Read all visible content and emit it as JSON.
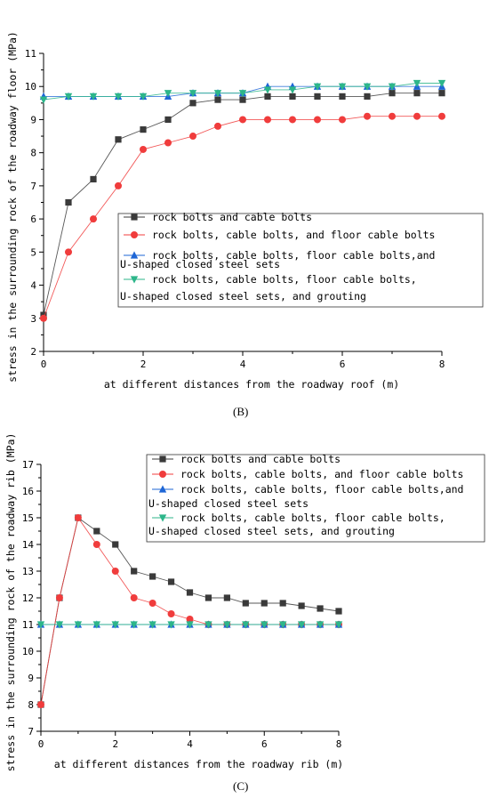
{
  "panels": [
    {
      "label": "(B)"
    },
    {
      "label": "(C)"
    }
  ],
  "chart_data": [
    {
      "type": "line",
      "xlabel": "at different distances from the roadway roof (m)",
      "ylabel": "stress in the surrounding rock of the roadway floor (MPa)",
      "xlim": [
        0,
        8
      ],
      "ylim": [
        2,
        11
      ],
      "xticks": [
        0,
        2,
        4,
        6,
        8
      ],
      "yticks": [
        2,
        3,
        4,
        5,
        6,
        7,
        8,
        9,
        10,
        11
      ],
      "grid": false,
      "legend_position": "center-right",
      "series": [
        {
          "name": "rock bolts and cable bolts",
          "color": "#3a3a3a",
          "marker": "square",
          "x": [
            0,
            0.5,
            1,
            1.5,
            2,
            2.5,
            3,
            3.5,
            4,
            4.5,
            5,
            5.5,
            6,
            6.5,
            7,
            7.5,
            8
          ],
          "y": [
            3.1,
            6.5,
            7.2,
            8.4,
            8.7,
            9.0,
            9.5,
            9.6,
            9.6,
            9.7,
            9.7,
            9.7,
            9.7,
            9.7,
            9.8,
            9.8,
            9.8
          ]
        },
        {
          "name": "rock bolts, cable bolts, and floor cable bolts",
          "color": "#f03c3c",
          "marker": "circle",
          "x": [
            0,
            0.5,
            1,
            1.5,
            2,
            2.5,
            3,
            3.5,
            4,
            4.5,
            5,
            5.5,
            6,
            6.5,
            7,
            7.5,
            8
          ],
          "y": [
            3.0,
            5.0,
            6.0,
            7.0,
            8.1,
            8.3,
            8.5,
            8.8,
            9.0,
            9.0,
            9.0,
            9.0,
            9.0,
            9.1,
            9.1,
            9.1,
            9.1
          ]
        },
        {
          "name": "rock bolts, cable bolts, floor cable bolts,and\nU-shaped closed steel sets",
          "color": "#1e66d6",
          "marker": "triangle-up",
          "x": [
            0,
            0.5,
            1,
            1.5,
            2,
            2.5,
            3,
            3.5,
            4,
            4.5,
            5,
            5.5,
            6,
            6.5,
            7,
            7.5,
            8
          ],
          "y": [
            9.7,
            9.7,
            9.7,
            9.7,
            9.7,
            9.7,
            9.8,
            9.8,
            9.8,
            10.0,
            10.0,
            10.0,
            10.0,
            10.0,
            10.0,
            10.0,
            10.0
          ]
        },
        {
          "name": "rock bolts, cable bolts, floor cable bolts,\nU-shaped closed steel sets, and grouting",
          "color": "#2db68a",
          "marker": "triangle-down",
          "x": [
            0,
            0.5,
            1,
            1.5,
            2,
            2.5,
            3,
            3.5,
            4,
            4.5,
            5,
            5.5,
            6,
            6.5,
            7,
            7.5,
            8
          ],
          "y": [
            9.6,
            9.7,
            9.7,
            9.7,
            9.7,
            9.8,
            9.8,
            9.8,
            9.8,
            9.9,
            9.9,
            10.0,
            10.0,
            10.0,
            10.0,
            10.1,
            10.1
          ]
        }
      ]
    },
    {
      "type": "line",
      "xlabel": "at different distances from the roadway rib (m)",
      "ylabel": "stress in the surrounding rock of the roadway rib (MPa)",
      "xlim": [
        0,
        8
      ],
      "ylim": [
        7,
        17
      ],
      "xticks": [
        0,
        2,
        4,
        6,
        8
      ],
      "yticks": [
        7,
        8,
        9,
        10,
        11,
        12,
        13,
        14,
        15,
        16,
        17
      ],
      "grid": false,
      "legend_position": "top-right",
      "series": [
        {
          "name": "rock bolts and cable bolts",
          "color": "#3a3a3a",
          "marker": "square",
          "x": [
            0,
            0.5,
            1,
            1.5,
            2,
            2.5,
            3,
            3.5,
            4,
            4.5,
            5,
            5.5,
            6,
            6.5,
            7,
            7.5,
            8
          ],
          "y": [
            8.0,
            12.0,
            15.0,
            14.5,
            14.0,
            13.0,
            12.8,
            12.6,
            12.2,
            12.0,
            12.0,
            11.8,
            11.8,
            11.8,
            11.7,
            11.6,
            11.5
          ]
        },
        {
          "name": "rock bolts, cable bolts, and floor cable bolts",
          "color": "#f03c3c",
          "marker": "circle",
          "x": [
            0,
            0.5,
            1,
            1.5,
            2,
            2.5,
            3,
            3.5,
            4,
            4.5,
            5,
            5.5,
            6,
            6.5,
            7,
            7.5,
            8
          ],
          "y": [
            8.0,
            12.0,
            15.0,
            14.0,
            13.0,
            12.0,
            11.8,
            11.4,
            11.2,
            11.0,
            11.0,
            11.0,
            11.0,
            11.0,
            11.0,
            11.0,
            11.0
          ]
        },
        {
          "name": "rock bolts, cable bolts, floor cable bolts,and\nU-shaped closed steel sets",
          "color": "#1e66d6",
          "marker": "triangle-up",
          "x": [
            0,
            0.5,
            1,
            1.5,
            2,
            2.5,
            3,
            3.5,
            4,
            4.5,
            5,
            5.5,
            6,
            6.5,
            7,
            7.5,
            8
          ],
          "y": [
            11.0,
            11.0,
            11.0,
            11.0,
            11.0,
            11.0,
            11.0,
            11.0,
            11.0,
            11.0,
            11.0,
            11.0,
            11.0,
            11.0,
            11.0,
            11.0,
            11.0
          ]
        },
        {
          "name": "rock bolts, cable bolts, floor cable bolts,\nU-shaped closed steel sets, and grouting",
          "color": "#2db68a",
          "marker": "triangle-down",
          "x": [
            0,
            0.5,
            1,
            1.5,
            2,
            2.5,
            3,
            3.5,
            4,
            4.5,
            5,
            5.5,
            6,
            6.5,
            7,
            7.5,
            8
          ],
          "y": [
            11.0,
            11.0,
            11.0,
            11.0,
            11.0,
            11.0,
            11.0,
            11.0,
            11.0,
            11.0,
            11.0,
            11.0,
            11.0,
            11.0,
            11.0,
            11.0,
            11.0
          ]
        }
      ]
    }
  ]
}
